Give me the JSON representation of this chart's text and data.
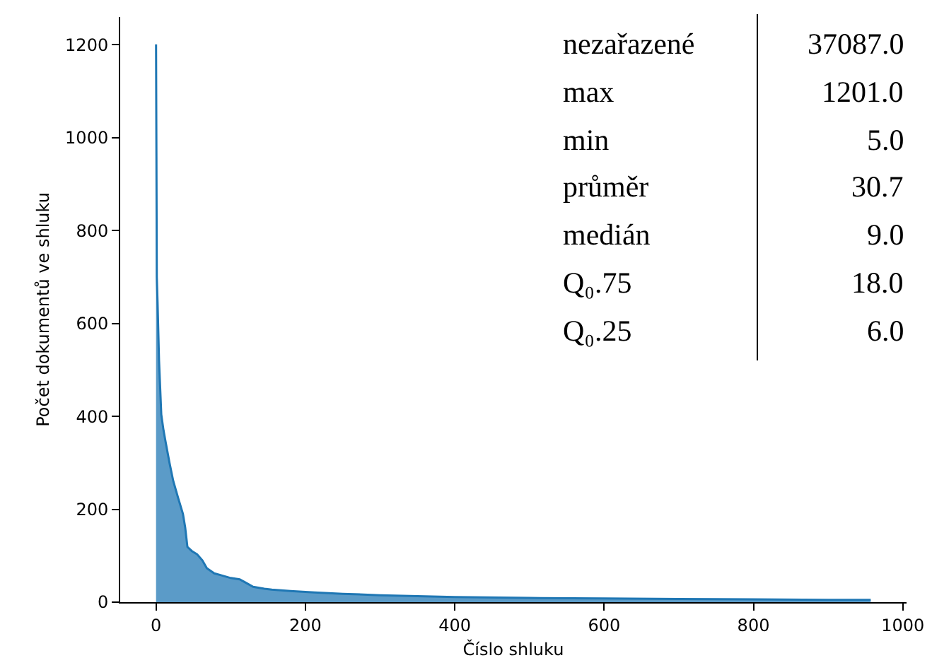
{
  "chart_data": {
    "type": "area",
    "xlabel": "Číslo shluku",
    "ylabel": "Počet dokumentů ve shluku",
    "x": [
      0,
      0.5,
      1,
      2,
      4,
      7,
      10,
      13,
      18,
      23,
      30,
      36,
      39,
      42,
      48,
      55,
      62,
      68,
      78,
      87,
      100,
      112,
      120,
      130,
      145,
      155,
      180,
      212,
      250,
      300,
      400,
      500,
      600,
      700,
      800,
      900,
      957
    ],
    "series": [
      {
        "color": "#1f77b4",
        "values": [
          1201,
          960,
          700,
          647,
          520,
          404,
          370,
          343,
          300,
          261,
          222,
          190,
          161,
          119,
          110,
          103,
          90,
          73,
          62,
          58,
          52,
          49,
          42,
          33,
          29,
          27,
          24,
          21,
          18,
          15,
          11,
          9,
          8,
          7,
          6,
          5,
          5
        ]
      }
    ],
    "xlim": [
      -48,
      1005
    ],
    "xticks": [
      0,
      200,
      400,
      600,
      800,
      1000
    ],
    "ylim": [
      0,
      1260
    ],
    "yticks": [
      0,
      200,
      400,
      600,
      800,
      1000,
      1200
    ],
    "grid": false,
    "marker": "none",
    "annotations": [
      "nezařazené",
      "37087.0",
      "max",
      "1201.0",
      "min",
      "5.0",
      "průměr",
      "30.7",
      "medián",
      "9.0",
      "Q₀.75",
      "18.0",
      "Q₀.25",
      "6.0"
    ]
  }
}
